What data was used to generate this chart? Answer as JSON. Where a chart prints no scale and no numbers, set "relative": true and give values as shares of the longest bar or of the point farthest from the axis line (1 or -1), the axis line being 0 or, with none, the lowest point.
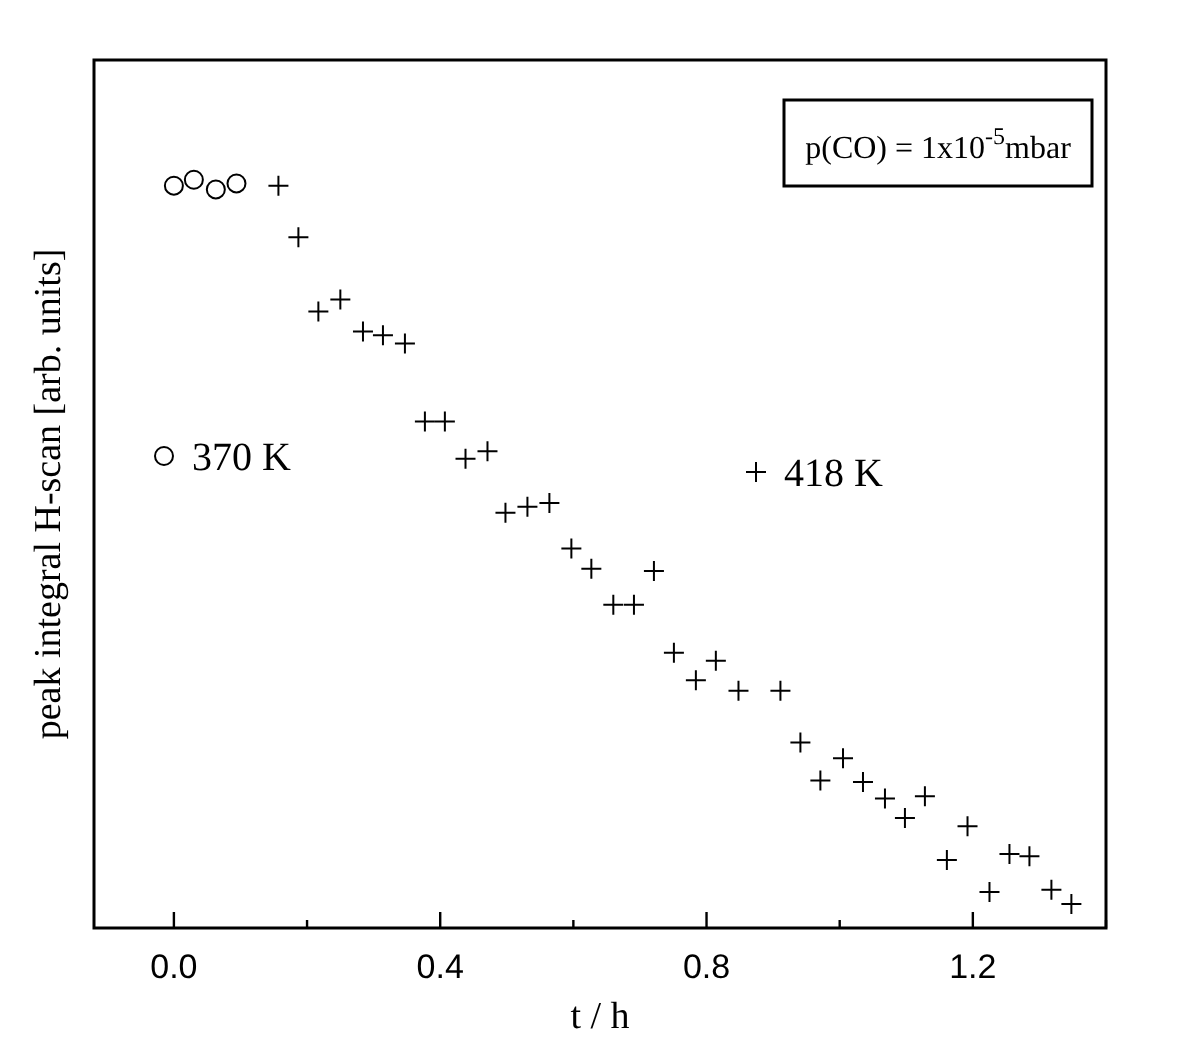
{
  "chart_data": {
    "type": "scatter",
    "relative": true,
    "xlabel": "t / h",
    "ylabel": "peak integral H-scan [arb. units]",
    "annotations": [
      "p(CO) = 1x10$^{-5}$mbar"
    ],
    "xlim": [
      -0.12,
      1.4
    ],
    "xticks": [
      {
        "value": 0,
        "label": "0.0"
      },
      {
        "value": 0.2,
        "label": null
      },
      {
        "value": 0.4,
        "label": "0.4"
      },
      {
        "value": 0.6,
        "label": null
      },
      {
        "value": 0.8,
        "label": "0.8"
      },
      {
        "value": 1.0,
        "label": null
      },
      {
        "value": 1.2,
        "label": "1.2"
      },
      {
        "value": 1.4,
        "label": null
      }
    ],
    "tick_labels": "x",
    "legend": "left",
    "grid": false,
    "series": [
      {
        "name": "370 K",
        "color": "#000000",
        "marker": "circle",
        "x": [
          0.0,
          0.03,
          0.063,
          0.094
        ],
        "values": [
          0.992,
          1.0,
          0.987,
          0.995
        ]
      },
      {
        "name": "418 K",
        "color": "#000000",
        "marker": "cross",
        "x": [
          0.157,
          0.187,
          0.217,
          0.25,
          0.284,
          0.314,
          0.347,
          0.377,
          0.407,
          0.438,
          0.471,
          0.498,
          0.531,
          0.564,
          0.597,
          0.627,
          0.66,
          0.691,
          0.721,
          0.751,
          0.784,
          0.814,
          0.848,
          0.911,
          0.941,
          0.971,
          1.005,
          1.035,
          1.068,
          1.098,
          1.128,
          1.161,
          1.192,
          1.225,
          1.255,
          1.285,
          1.318,
          1.348
        ],
        "values": [
          0.992,
          0.923,
          0.824,
          0.84,
          0.797,
          0.792,
          0.781,
          0.677,
          0.677,
          0.627,
          0.637,
          0.555,
          0.563,
          0.568,
          0.507,
          0.48,
          0.432,
          0.432,
          0.477,
          0.368,
          0.331,
          0.357,
          0.317,
          0.317,
          0.248,
          0.197,
          0.227,
          0.195,
          0.173,
          0.147,
          0.176,
          0.091,
          0.136,
          0.048,
          0.099,
          0.096,
          0.051,
          0.032
        ]
      }
    ]
  }
}
